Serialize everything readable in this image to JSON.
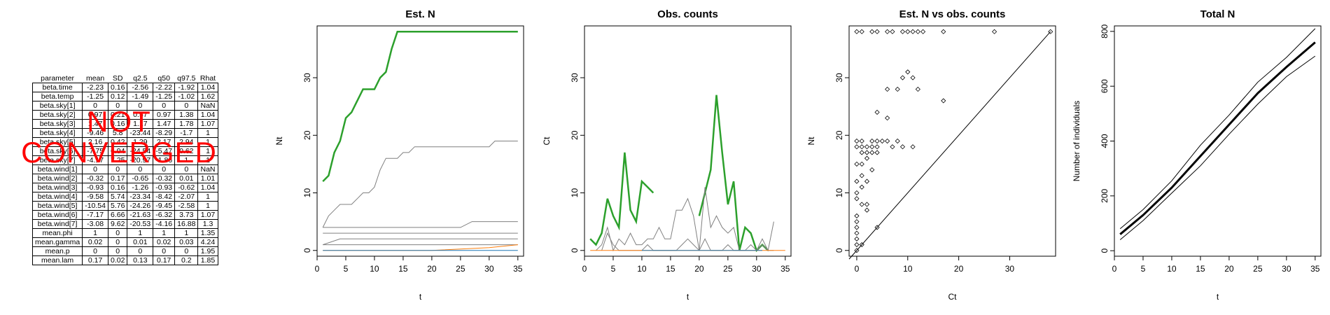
{
  "summary": {
    "columns": [
      "parameter",
      "mean",
      "SD",
      "q2.5",
      "q50",
      "q97.5",
      "Rhat"
    ],
    "rows": [
      [
        "beta.time",
        "-2.23",
        "0.16",
        "-2.56",
        "-2.22",
        "-1.92",
        "1.04"
      ],
      [
        "beta.temp",
        "-1.25",
        "0.12",
        "-1.49",
        "-1.25",
        "-1.02",
        "1.62"
      ],
      [
        "beta.sky[1]",
        "0",
        "0",
        "0",
        "0",
        "0",
        "NaN"
      ],
      [
        "beta.sky[2]",
        "0.97",
        "0.21",
        "0.57",
        "0.97",
        "1.38",
        "1.04"
      ],
      [
        "beta.sky[3]",
        "1.47",
        "0.16",
        "1.17",
        "1.47",
        "1.78",
        "1.07"
      ],
      [
        "beta.sky[4]",
        "-9.46",
        "5.8",
        "-23.44",
        "-8.29",
        "-1.7",
        "1"
      ],
      [
        "beta.sky[5]",
        "2.16",
        "0.42",
        "1.29",
        "2.17",
        "2.94",
        "1"
      ],
      [
        "beta.sky[6]",
        "-7.75",
        "6.94",
        "-24.54",
        "-5.47",
        "0.62",
        "1"
      ],
      [
        "beta.sky[7]",
        "-4.17",
        "7.25",
        "-20.97",
        "-1.86",
        "1",
        "1"
      ],
      [
        "beta.wind[1]",
        "0",
        "0",
        "0",
        "0",
        "0",
        "NaN"
      ],
      [
        "beta.wind[2]",
        "-0.32",
        "0.17",
        "-0.65",
        "-0.32",
        "0.01",
        "1.01"
      ],
      [
        "beta.wind[3]",
        "-0.93",
        "0.16",
        "-1.26",
        "-0.93",
        "-0.62",
        "1.04"
      ],
      [
        "beta.wind[4]",
        "-9.58",
        "5.74",
        "-23.34",
        "-8.42",
        "-2.07",
        "1"
      ],
      [
        "beta.wind[5]",
        "-10.54",
        "5.76",
        "-24.26",
        "-9.45",
        "-2.58",
        "1"
      ],
      [
        "beta.wind[6]",
        "-7.17",
        "6.66",
        "-21.63",
        "-6.32",
        "3.73",
        "1.07"
      ],
      [
        "beta.wind[7]",
        "-3.08",
        "9.62",
        "-20.53",
        "-4.16",
        "16.88",
        "1.3"
      ],
      [
        "mean.phi",
        "1",
        "0",
        "1",
        "1",
        "1",
        "1.35"
      ],
      [
        "mean.gamma",
        "0.02",
        "0",
        "0.01",
        "0.02",
        "0.03",
        "4.24"
      ],
      [
        "mean.p",
        "0",
        "0",
        "0",
        "0",
        "0",
        "1.95"
      ],
      [
        "mean.lam",
        "0.17",
        "0.02",
        "0.13",
        "0.17",
        "0.2",
        "1.85"
      ]
    ]
  },
  "overlay": {
    "line1": "NOT",
    "line2": "CONVERGED",
    "color": "#ff0000"
  },
  "colors": {
    "green": "#2ca02c",
    "gray": "#808080",
    "orange": "#ff7f0e",
    "blue": "#1f77b4",
    "black": "#000000"
  },
  "chart_data": [
    {
      "type": "line",
      "title": "Est. N",
      "xlabel": "t",
      "ylabel": "Nt",
      "xlim": [
        0,
        36
      ],
      "ylim": [
        -1,
        39
      ],
      "xticks": [
        0,
        5,
        10,
        15,
        20,
        25,
        30,
        35
      ],
      "yticks": [
        0,
        10,
        20,
        30
      ],
      "series": [
        {
          "color": "#2ca02c",
          "x": [
            1,
            2,
            3,
            4,
            5,
            6,
            7,
            8,
            9,
            10,
            11,
            12,
            13,
            14,
            15,
            16,
            17,
            18,
            19,
            20,
            21,
            22,
            23,
            24,
            25,
            26,
            27,
            28,
            29,
            30,
            31,
            32,
            33,
            34,
            35
          ],
          "values": [
            12,
            13,
            17,
            19,
            23,
            24,
            26,
            28,
            28,
            28,
            30,
            31,
            35,
            38,
            38,
            38,
            38,
            38,
            38,
            38,
            38,
            38,
            38,
            38,
            38,
            38,
            38,
            38,
            38,
            38,
            38,
            38,
            38,
            38,
            38
          ]
        },
        {
          "color": "#808080",
          "x": [
            1,
            2,
            3,
            4,
            5,
            6,
            7,
            8,
            9,
            10,
            11,
            12,
            13,
            14,
            15,
            16,
            17,
            18,
            19,
            20,
            21,
            22,
            23,
            24,
            25,
            26,
            27,
            28,
            29,
            30,
            31,
            32,
            33,
            34,
            35
          ],
          "values": [
            4,
            6,
            7,
            8,
            8,
            8,
            9,
            10,
            10,
            11,
            14,
            16,
            16,
            16,
            17,
            17,
            18,
            18,
            18,
            18,
            18,
            18,
            18,
            18,
            18,
            18,
            18,
            18,
            18,
            18,
            19,
            19,
            19,
            19,
            19
          ]
        },
        {
          "color": "#808080",
          "x": [
            1,
            5,
            10,
            15,
            20,
            25,
            27,
            30,
            35
          ],
          "values": [
            4,
            4,
            4,
            4,
            4,
            4,
            5,
            5,
            5
          ]
        },
        {
          "color": "#808080",
          "x": [
            1,
            5,
            10,
            15,
            20,
            25,
            30,
            35
          ],
          "values": [
            3,
            3,
            3,
            3,
            3,
            3,
            3,
            3
          ]
        },
        {
          "color": "#808080",
          "x": [
            1,
            4,
            10,
            15,
            20,
            25,
            30,
            35
          ],
          "values": [
            1,
            2,
            2,
            2,
            2,
            2,
            2,
            2
          ]
        },
        {
          "color": "#808080",
          "x": [
            1,
            5,
            10,
            15,
            20,
            25,
            30,
            35
          ],
          "values": [
            1,
            1,
            1,
            1,
            1,
            1,
            1,
            1
          ]
        },
        {
          "color": "#ff7f0e",
          "x": [
            1,
            10,
            20,
            30,
            35
          ],
          "values": [
            0,
            0,
            0,
            0.5,
            1
          ]
        },
        {
          "color": "#1f77b4",
          "x": [
            1,
            10,
            20,
            30,
            35
          ],
          "values": [
            0,
            0,
            0,
            0,
            0
          ]
        }
      ]
    },
    {
      "type": "line",
      "title": "Obs. counts",
      "xlabel": "t",
      "ylabel": "Ct",
      "xlim": [
        0,
        36
      ],
      "ylim": [
        -1,
        39
      ],
      "xticks": [
        0,
        5,
        10,
        15,
        20,
        25,
        30,
        35
      ],
      "yticks": [
        0,
        10,
        20,
        30
      ],
      "series": [
        {
          "color": "#2ca02c",
          "x": [
            1,
            2,
            3,
            4,
            5,
            6,
            7,
            8,
            9,
            10,
            11,
            12
          ],
          "values": [
            2,
            1,
            3,
            9,
            6,
            4,
            17,
            7,
            5,
            12,
            11,
            10
          ]
        },
        {
          "color": "#2ca02c",
          "x": [
            20,
            21,
            22,
            23,
            24,
            25,
            26,
            27,
            28,
            29,
            30,
            31,
            32
          ],
          "values": [
            6,
            10,
            14,
            27,
            17,
            8,
            12,
            0,
            4,
            3,
            0,
            1,
            0
          ]
        },
        {
          "color": "#808080",
          "x": [
            2,
            3,
            4,
            5,
            6,
            7,
            8,
            9,
            10,
            11,
            12,
            13,
            14,
            15,
            16,
            17,
            18,
            19,
            20,
            21,
            22,
            23,
            24,
            25,
            26,
            27,
            28,
            29,
            30,
            31,
            32,
            33
          ],
          "values": [
            0,
            1,
            4,
            0,
            2,
            1,
            3,
            1,
            1,
            2,
            2,
            4,
            2,
            2,
            7,
            7,
            9,
            6,
            0,
            11,
            4,
            6,
            4,
            3,
            4,
            0,
            0,
            1,
            0,
            2,
            0,
            5
          ]
        },
        {
          "color": "#808080",
          "x": [
            3,
            4,
            5,
            6,
            7,
            8,
            9,
            10,
            11,
            12,
            13,
            14,
            15,
            16,
            17,
            18,
            19,
            20,
            21,
            22,
            23,
            24,
            25,
            26,
            27,
            28,
            29,
            30,
            31,
            32,
            33
          ],
          "values": [
            0,
            3,
            1,
            0,
            0,
            0,
            0,
            0,
            1,
            0,
            0,
            0,
            0,
            0,
            1,
            2,
            1,
            0,
            2,
            0,
            0,
            0,
            1,
            0,
            0,
            0,
            0,
            0,
            1,
            0,
            0
          ]
        },
        {
          "color": "#ff7f0e",
          "x": [
            1,
            35
          ],
          "values": [
            0,
            0
          ]
        },
        {
          "color": "#1f77b4",
          "x": [
            10,
            12,
            15,
            17,
            20,
            23,
            26,
            29,
            31
          ],
          "values": [
            0,
            0,
            0,
            0,
            0,
            0,
            0,
            0,
            0
          ]
        }
      ]
    },
    {
      "type": "scatter",
      "title": "Est. N vs obs. counts",
      "xlabel": "Ct",
      "ylabel": "Nt",
      "xlim": [
        -1.5,
        39
      ],
      "ylim": [
        -1,
        39
      ],
      "xticks": [
        0,
        10,
        20,
        30
      ],
      "yticks": [
        0,
        10,
        20,
        30
      ],
      "diagonal": true,
      "points": [
        [
          0,
          38
        ],
        [
          1,
          38
        ],
        [
          3,
          38
        ],
        [
          4,
          38
        ],
        [
          6,
          38
        ],
        [
          7,
          38
        ],
        [
          9,
          38
        ],
        [
          10,
          38
        ],
        [
          11,
          38
        ],
        [
          12,
          38
        ],
        [
          13,
          38
        ],
        [
          17,
          38
        ],
        [
          27,
          38
        ],
        [
          38,
          38
        ],
        [
          10,
          31
        ],
        [
          11,
          30
        ],
        [
          9,
          30
        ],
        [
          12,
          28
        ],
        [
          8,
          28
        ],
        [
          6,
          28
        ],
        [
          17,
          26
        ],
        [
          4,
          24
        ],
        [
          6,
          23
        ],
        [
          0,
          19
        ],
        [
          1,
          19
        ],
        [
          3,
          19
        ],
        [
          4,
          19
        ],
        [
          5,
          19
        ],
        [
          6,
          19
        ],
        [
          8,
          19
        ],
        [
          9,
          18
        ],
        [
          11,
          18
        ],
        [
          7,
          18
        ],
        [
          4,
          18
        ],
        [
          3,
          18
        ],
        [
          2,
          18
        ],
        [
          1,
          18
        ],
        [
          0,
          18
        ],
        [
          2,
          17
        ],
        [
          3,
          17
        ],
        [
          4,
          17
        ],
        [
          1,
          17
        ],
        [
          2,
          16
        ],
        [
          1,
          15
        ],
        [
          0,
          15
        ],
        [
          3,
          14
        ],
        [
          1,
          13
        ],
        [
          2,
          12
        ],
        [
          0,
          12
        ],
        [
          1,
          11
        ],
        [
          0,
          10
        ],
        [
          0,
          9
        ],
        [
          1,
          8
        ],
        [
          2,
          8
        ],
        [
          2,
          7
        ],
        [
          0,
          6
        ],
        [
          0,
          5
        ],
        [
          0,
          4
        ],
        [
          4,
          4
        ],
        [
          0,
          3
        ],
        [
          0,
          2
        ],
        [
          0,
          1
        ],
        [
          0,
          0
        ],
        [
          1,
          1
        ]
      ]
    },
    {
      "type": "line",
      "title": "Total N",
      "xlabel": "t",
      "ylabel": "Number of individuals",
      "xlim": [
        0,
        36
      ],
      "ylim": [
        -20,
        820
      ],
      "xticks": [
        0,
        5,
        10,
        15,
        20,
        25,
        30,
        35
      ],
      "yticks": [
        0,
        200,
        400,
        600,
        800
      ],
      "series": [
        {
          "name": "",
          "color": "#000000",
          "width": 1,
          "x": [
            1,
            5,
            10,
            15,
            20,
            25,
            30,
            35
          ],
          "values": [
            80,
            150,
            255,
            385,
            495,
            615,
            705,
            810
          ]
        },
        {
          "name": "",
          "color": "#000000",
          "width": 3,
          "x": [
            1,
            5,
            10,
            15,
            20,
            25,
            30,
            35
          ],
          "values": [
            60,
            130,
            230,
            345,
            460,
            575,
            670,
            760
          ]
        },
        {
          "name": "",
          "color": "#000000",
          "width": 1,
          "x": [
            1,
            5,
            10,
            15,
            20,
            25,
            30,
            35
          ],
          "values": [
            40,
            110,
            210,
            310,
            425,
            535,
            635,
            710
          ]
        }
      ]
    }
  ]
}
